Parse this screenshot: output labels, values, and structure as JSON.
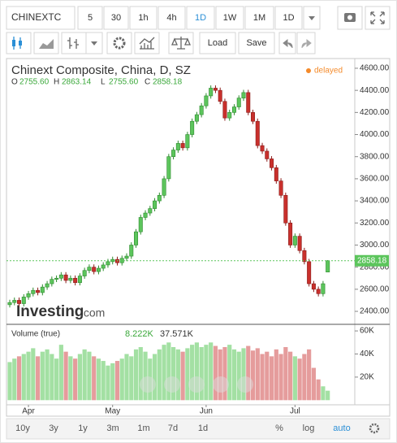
{
  "toolbar": {
    "symbol": "CHINEXTC",
    "intervals": [
      "5",
      "30",
      "1h",
      "4h",
      "1D",
      "1W",
      "1M",
      "1D"
    ],
    "load": "Load",
    "save": "Save"
  },
  "chart_data": {
    "type": "candlestick",
    "title": "Chinext Composite, China, D, SZ",
    "status": "delayed",
    "ohlc_header": [
      {
        "key": "O",
        "value": "2755.60"
      },
      {
        "key": "H",
        "value": "2863.14"
      },
      {
        "key": "L",
        "value": "2755.60"
      },
      {
        "key": "C",
        "value": "2858.18"
      }
    ],
    "categories": [
      null,
      null,
      null,
      null,
      "Apr",
      null,
      null,
      null,
      null,
      null,
      null,
      null,
      null,
      null,
      null,
      null,
      null,
      null,
      null,
      null,
      null,
      null,
      "May",
      null,
      null,
      null,
      null,
      null,
      null,
      null,
      null,
      null,
      null,
      null,
      null,
      null,
      null,
      null,
      null,
      null,
      null,
      null,
      "Jun",
      null,
      null,
      null,
      null,
      null,
      null,
      null,
      null,
      null,
      null,
      null,
      null,
      null,
      null,
      null,
      null,
      null,
      null,
      "Jul",
      null,
      null,
      null,
      null,
      null,
      null,
      null
    ],
    "open": [
      2460,
      2480,
      2500,
      2470,
      2530,
      2560,
      2590,
      2570,
      2620,
      2650,
      2690,
      2700,
      2730,
      2680,
      2700,
      2660,
      2720,
      2770,
      2800,
      2760,
      2790,
      2820,
      2850,
      2870,
      2840,
      2880,
      2900,
      3000,
      3120,
      3250,
      3290,
      3330,
      3400,
      3450,
      3600,
      3800,
      3860,
      3920,
      3880,
      4000,
      4120,
      4180,
      4260,
      4350,
      4420,
      4400,
      4300,
      4150,
      4200,
      4250,
      4330,
      4380,
      4200,
      4120,
      3900,
      3850,
      3780,
      3700,
      3580,
      3450,
      3200,
      3000,
      3080,
      2950,
      2850,
      2650,
      2600,
      2560,
      2755.6
    ],
    "high": [
      2505,
      2525,
      2525,
      2555,
      2585,
      2615,
      2615,
      2645,
      2675,
      2715,
      2725,
      2755,
      2755,
      2725,
      2725,
      2745,
      2795,
      2825,
      2825,
      2815,
      2845,
      2875,
      2895,
      2895,
      2905,
      2925,
      3025,
      3145,
      3275,
      3315,
      3355,
      3425,
      3475,
      3625,
      3825,
      3885,
      3945,
      3945,
      4025,
      4145,
      4205,
      4285,
      4375,
      4445,
      4445,
      4425,
      4325,
      4225,
      4275,
      4355,
      4405,
      4405,
      4225,
      4145,
      3925,
      3875,
      3805,
      3725,
      3605,
      3475,
      3225,
      3105,
      3105,
      2975,
      2875,
      2675,
      2625,
      2675,
      2863.14
    ],
    "low": [
      2435,
      2455,
      2445,
      2445,
      2505,
      2535,
      2545,
      2545,
      2595,
      2625,
      2665,
      2675,
      2655,
      2655,
      2635,
      2635,
      2695,
      2745,
      2735,
      2735,
      2765,
      2795,
      2825,
      2815,
      2815,
      2855,
      2875,
      2975,
      3095,
      3225,
      3265,
      3305,
      3375,
      3425,
      3575,
      3775,
      3835,
      3855,
      3855,
      3975,
      4095,
      4155,
      4235,
      4325,
      4375,
      4275,
      4125,
      4125,
      4175,
      4225,
      4305,
      4175,
      4095,
      3875,
      3825,
      3755,
      3675,
      3555,
      3425,
      3175,
      2975,
      2975,
      2925,
      2825,
      2625,
      2575,
      2535,
      2535,
      2755.6
    ],
    "close": [
      2480,
      2500,
      2470,
      2530,
      2560,
      2590,
      2570,
      2620,
      2650,
      2690,
      2700,
      2730,
      2680,
      2700,
      2660,
      2720,
      2770,
      2800,
      2760,
      2790,
      2820,
      2850,
      2870,
      2840,
      2880,
      2900,
      3000,
      3120,
      3250,
      3290,
      3330,
      3400,
      3450,
      3600,
      3800,
      3860,
      3920,
      3880,
      4000,
      4120,
      4180,
      4260,
      4350,
      4420,
      4400,
      4300,
      4150,
      4200,
      4250,
      4330,
      4380,
      4200,
      4120,
      3900,
      3850,
      3780,
      3700,
      3580,
      3450,
      3200,
      3000,
      3080,
      2950,
      2850,
      2650,
      2600,
      2560,
      2650,
      2858.18
    ],
    "up_color": "#5cc55c",
    "down_color": "#c9302c",
    "ylim": [
      2290,
      4688
    ],
    "yticks": [
      {
        "value": 2400,
        "label": "2400.00"
      },
      {
        "value": 2600,
        "label": "2600.00"
      },
      {
        "value": 2800,
        "label": "2800.00"
      },
      {
        "value": 3000,
        "label": "3000.00"
      },
      {
        "value": 3200,
        "label": "3200.00"
      },
      {
        "value": 3400,
        "label": "3400.00"
      },
      {
        "value": 3600,
        "label": "3600.00"
      },
      {
        "value": 3800,
        "label": "3800.00"
      },
      {
        "value": 4000,
        "label": "4000.00"
      },
      {
        "value": 4200,
        "label": "4200.00"
      },
      {
        "value": 4400,
        "label": "4400.00"
      },
      {
        "value": 4600,
        "label": "4600.00"
      }
    ],
    "volume": {
      "name": "Volume (true)",
      "last_label": "8.222K",
      "average_label": "37.571K",
      "values": [
        33000,
        36000,
        38000,
        40000,
        42000,
        45000,
        38000,
        42000,
        44000,
        40000,
        36000,
        48000,
        42000,
        38000,
        36000,
        40000,
        44000,
        42000,
        38000,
        36000,
        34000,
        30000,
        32000,
        34000,
        36000,
        40000,
        38000,
        44000,
        46000,
        42000,
        36000,
        40000,
        44000,
        48000,
        50000,
        46000,
        44000,
        42000,
        45000,
        48000,
        50000,
        46000,
        48000,
        50000,
        47000,
        44000,
        46000,
        48000,
        44000,
        42000,
        45000,
        47000,
        43000,
        45000,
        40000,
        42000,
        38000,
        44000,
        40000,
        46000,
        42000,
        38000,
        36000,
        40000,
        44000,
        28000,
        18000,
        12000,
        8222
      ],
      "up_color": "#a3e0a3",
      "down_color": "#e59c9c",
      "ylim": [
        -4000,
        65000
      ],
      "yticks": [
        {
          "value": 20000,
          "label": "20K"
        },
        {
          "value": 40000,
          "label": "40K"
        },
        {
          "value": 60000,
          "label": "60K"
        }
      ]
    }
  },
  "logo": {
    "brand": "Investing",
    "suffix": ".com"
  },
  "bottom_bar": {
    "ranges": [
      "10y",
      "3y",
      "1y",
      "3m",
      "1m",
      "7d",
      "1d"
    ],
    "percent": "%",
    "log": "log",
    "auto": "auto"
  }
}
